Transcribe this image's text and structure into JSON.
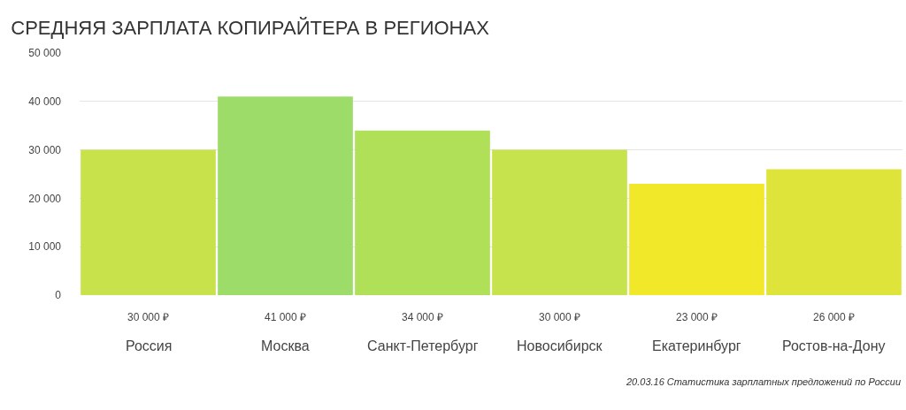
{
  "chart_data": {
    "type": "bar",
    "title": "СРЕДНЯЯ ЗАРПЛАТА КОПИРАЙТЕРА В РЕГИОНАХ",
    "categories": [
      "Россия",
      "Москва",
      "Санкт-Петербург",
      "Новосибирск",
      "Екатеринбург",
      "Ростов-на-Дону"
    ],
    "values": [
      30000,
      41000,
      34000,
      30000,
      23000,
      26000
    ],
    "value_labels": [
      "30 000 ₽",
      "41 000 ₽",
      "34 000 ₽",
      "30 000 ₽",
      "23 000 ₽",
      "26 000 ₽"
    ],
    "colors": [
      "#c7e24a",
      "#9edc6a",
      "#b0df58",
      "#c6e24c",
      "#f0e828",
      "#dfe43a"
    ],
    "ylim": [
      0,
      50000
    ],
    "yticks": [
      {
        "value": 0,
        "label": "0"
      },
      {
        "value": 10000,
        "label": "10 000"
      },
      {
        "value": 20000,
        "label": "20 000"
      },
      {
        "value": 30000,
        "label": "30 000"
      },
      {
        "value": 40000,
        "label": "40 000"
      },
      {
        "value": 50000,
        "label": "50 000"
      }
    ],
    "grid": "y",
    "annotations": [
      "20.03.16 Статистика зарплатных предложений по России"
    ]
  }
}
